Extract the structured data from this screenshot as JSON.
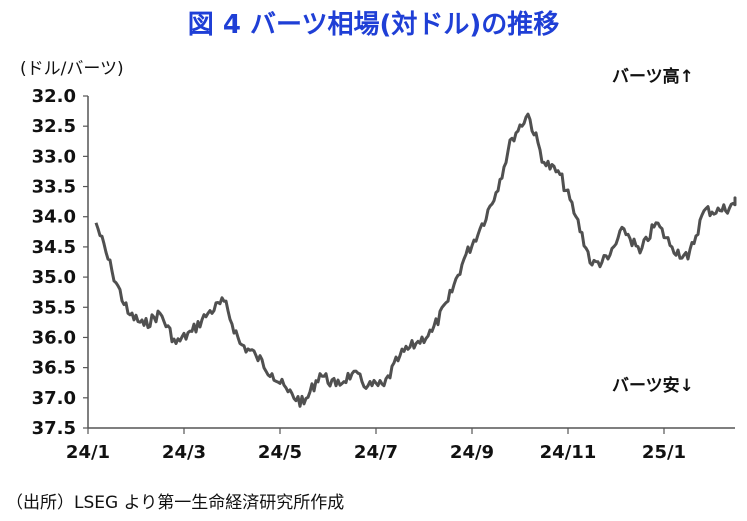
{
  "title": "図 4 バーツ相場(対ドル)の推移",
  "unit": "(ドル/バーツ)",
  "annotation_up": "バーツ高↑",
  "annotation_down": "バーツ安↓",
  "source": "（出所）LSEG より第一生命経済研究所作成",
  "colors": {
    "title": "#1f3fd6",
    "series": "#505050",
    "axis": "#555555"
  },
  "chart_data": {
    "type": "line",
    "ylim": [
      37.5,
      32.0
    ],
    "y_inverted": true,
    "y_ticks": [
      "32.0",
      "32.5",
      "33.0",
      "33.5",
      "34.0",
      "34.5",
      "35.0",
      "35.5",
      "36.0",
      "36.5",
      "37.0",
      "37.5"
    ],
    "x_ticks": [
      "24/1",
      "24/3",
      "24/5",
      "24/7",
      "24/9",
      "24/11",
      "25/1"
    ],
    "grid": false,
    "series": [
      {
        "x": [
          "24/1",
          "24/1",
          "24/1",
          "24/2",
          "24/2",
          "24/2",
          "24/3",
          "24/3",
          "24/3",
          "24/4",
          "24/4",
          "24/4",
          "24/5",
          "24/5",
          "24/5",
          "24/6",
          "24/6",
          "24/6",
          "24/7",
          "24/7",
          "24/7",
          "24/8",
          "24/8",
          "24/8",
          "24/9",
          "24/9",
          "24/9",
          "24/10",
          "24/10",
          "24/10",
          "24/11",
          "24/11",
          "24/11",
          "24/12",
          "24/12",
          "24/12",
          "25/1",
          "25/1",
          "25/1",
          "25/2",
          "25/2",
          "25/2"
        ],
        "y": [
          34.1,
          34.9,
          35.6,
          35.8,
          35.6,
          36.1,
          35.9,
          35.6,
          35.4,
          36.1,
          36.3,
          36.6,
          36.9,
          37.1,
          36.6,
          36.8,
          36.6,
          36.8,
          36.8,
          36.3,
          36.1,
          35.9,
          35.4,
          34.7,
          34.2,
          33.6,
          32.7,
          32.3,
          33.1,
          33.3,
          34.0,
          34.8,
          34.7,
          34.2,
          34.6,
          34.1,
          34.5,
          34.7,
          33.9,
          33.9,
          33.8,
          33.7
        ]
      }
    ]
  }
}
